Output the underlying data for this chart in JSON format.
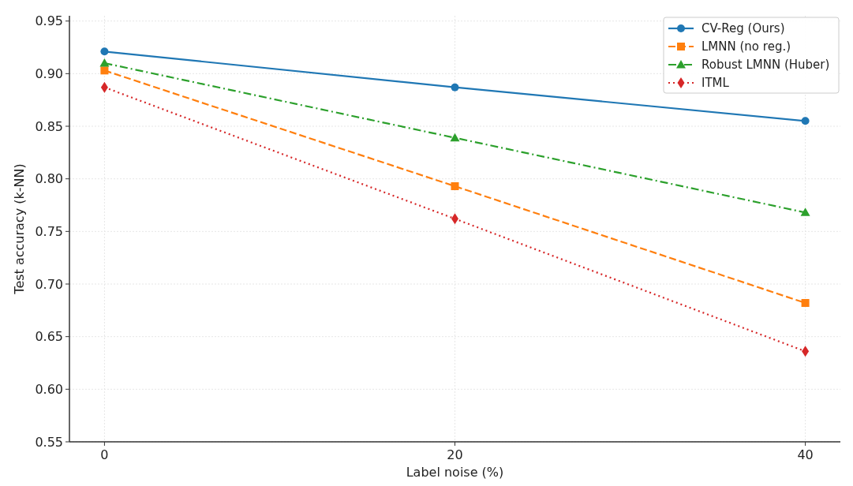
{
  "chart_data": {
    "type": "line",
    "xlabel": "Label noise (%)",
    "ylabel": "Test accuracy (k-NN)",
    "x": [
      0,
      20,
      40
    ],
    "series": [
      {
        "name": "CV-Reg (Ours)",
        "color": "#1f77b4",
        "values": [
          0.921,
          0.887,
          0.855
        ],
        "marker": "circle",
        "line_style": "solid"
      },
      {
        "name": "LMNN (no reg.)",
        "color": "#ff7f0e",
        "values": [
          0.903,
          0.793,
          0.682
        ],
        "marker": "square",
        "line_style": "dashed"
      },
      {
        "name": "Robust LMNN (Huber)",
        "color": "#2ca02c",
        "values": [
          0.91,
          0.839,
          0.768
        ],
        "marker": "triangle",
        "line_style": "dashdot"
      },
      {
        "name": "ITML",
        "color": "#d62728",
        "values": [
          0.887,
          0.762,
          0.636
        ],
        "marker": "diamond",
        "line_style": "dotted"
      }
    ],
    "xlim": [
      -2,
      42
    ],
    "xticks": [
      0,
      20,
      40
    ],
    "ylim": [
      0.55,
      0.955
    ],
    "yticks": [
      {
        "value": 0.55,
        "label": "0.55"
      },
      {
        "value": 0.6,
        "label": "0.60"
      },
      {
        "value": 0.65,
        "label": "0.65"
      },
      {
        "value": 0.7,
        "label": "0.70"
      },
      {
        "value": 0.75,
        "label": "0.75"
      },
      {
        "value": 0.8,
        "label": "0.80"
      },
      {
        "value": 0.85,
        "label": "0.85"
      },
      {
        "value": 0.9,
        "label": "0.90"
      },
      {
        "value": 0.95,
        "label": "0.95"
      }
    ],
    "grid": true,
    "legend": "top right"
  }
}
